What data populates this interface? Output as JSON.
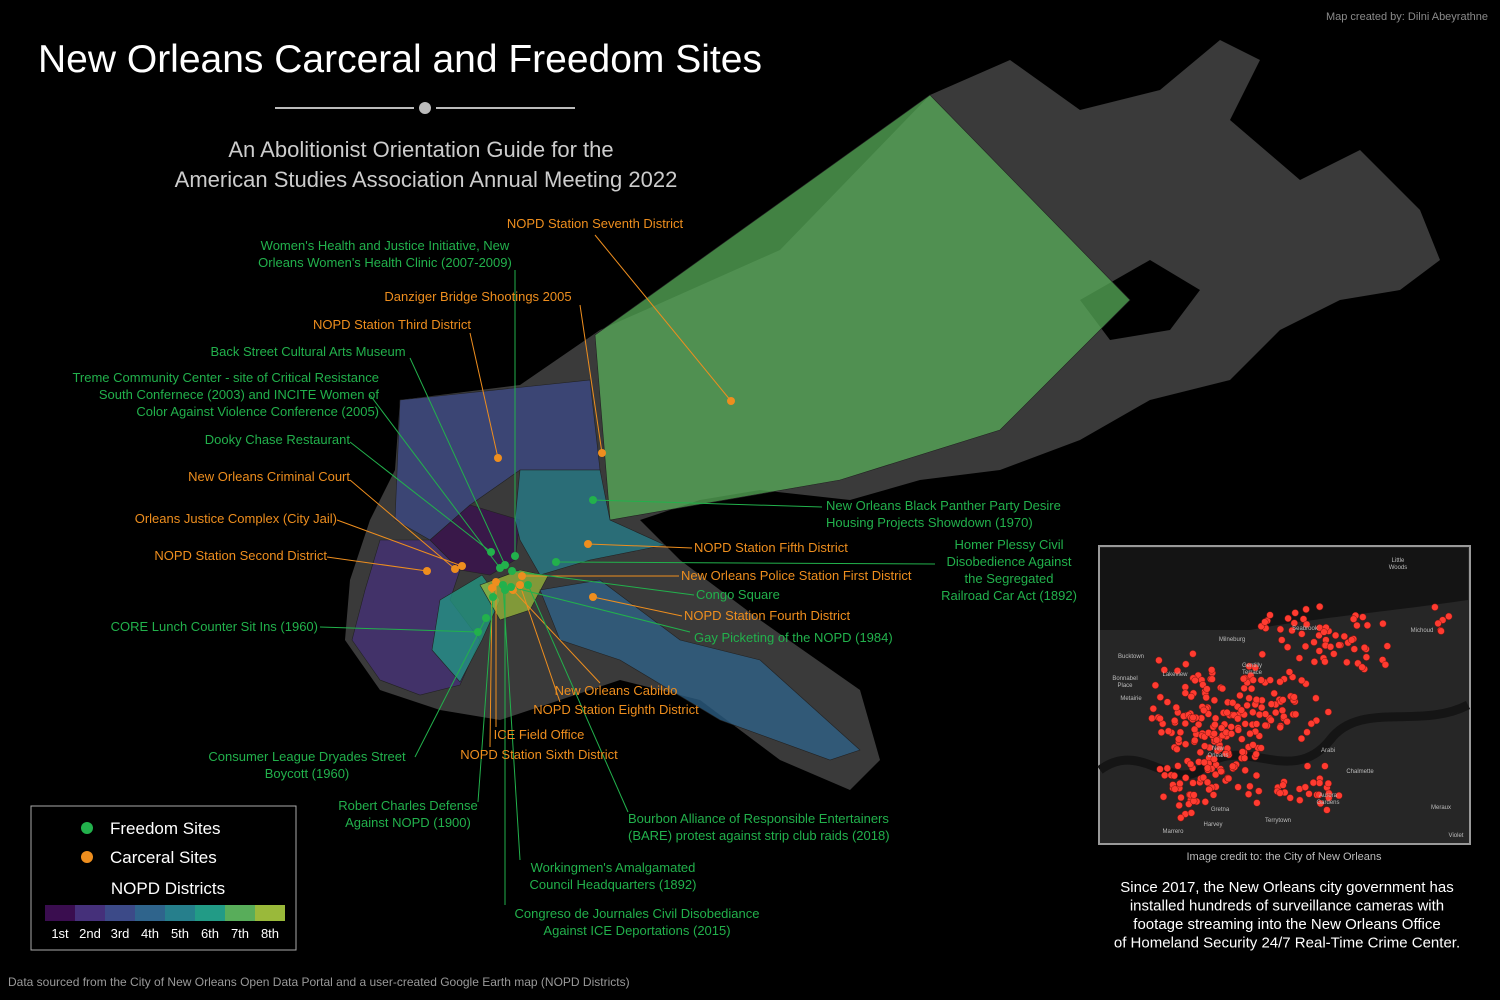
{
  "credit": "Map created by: Dilni Abeyrathne",
  "title": "New Orleans Carceral and Freedom Sites",
  "subtitle": [
    "An Abolitionist Orientation Guide for the",
    "American Studies Association Annual Meeting 2022"
  ],
  "sites": [
    {
      "type": "carceral",
      "label": [
        "NOPD Station Seventh District"
      ]
    },
    {
      "type": "carceral",
      "label": [
        "Danziger Bridge Shootings 2005"
      ]
    },
    {
      "type": "carceral",
      "label": [
        "NOPD Station Third District"
      ]
    },
    {
      "type": "carceral",
      "label": [
        "New Orleans Criminal Court"
      ]
    },
    {
      "type": "carceral",
      "label": [
        "Orleans Justice Complex (City Jail)"
      ]
    },
    {
      "type": "carceral",
      "label": [
        "NOPD Station Second District"
      ]
    },
    {
      "type": "carceral",
      "label": [
        "NOPD Station Fifth District"
      ]
    },
    {
      "type": "carceral",
      "label": [
        "New Orleans Police Station First District"
      ]
    },
    {
      "type": "carceral",
      "label": [
        "NOPD Station Fourth District"
      ]
    },
    {
      "type": "carceral",
      "label": [
        "New Orleans Cabildo"
      ]
    },
    {
      "type": "carceral",
      "label": [
        "NOPD Station Eighth District"
      ]
    },
    {
      "type": "carceral",
      "label": [
        "ICE Field Office"
      ]
    },
    {
      "type": "carceral",
      "label": [
        "NOPD Station Sixth District"
      ]
    },
    {
      "type": "freedom",
      "label": [
        "Women's Health and Justice Initiative, New",
        "Orleans Women's Health Clinic (2007-2009)"
      ]
    },
    {
      "type": "freedom",
      "label": [
        "Back Street Cultural Arts Museum"
      ]
    },
    {
      "type": "freedom",
      "label": [
        "Treme Community Center - site of Critical Resistance",
        "South Confernece (2003) and INCITE Women of",
        "Color Against Violence Conference (2005)"
      ]
    },
    {
      "type": "freedom",
      "label": [
        "Dooky Chase Restaurant"
      ]
    },
    {
      "type": "freedom",
      "label": [
        "New Orleans Black Panther Party Desire",
        "Housing Projects Showdown (1970)"
      ]
    },
    {
      "type": "freedom",
      "label": [
        "Homer Plessy Civil",
        "Disobedience Against",
        "the Segregated",
        "Railroad Car Act (1892)"
      ]
    },
    {
      "type": "freedom",
      "label": [
        "Congo Square"
      ]
    },
    {
      "type": "freedom",
      "label": [
        "Gay Picketing of the NOPD (1984)"
      ]
    },
    {
      "type": "freedom",
      "label": [
        "CORE Lunch Counter Sit Ins (1960)"
      ]
    },
    {
      "type": "freedom",
      "label": [
        "Consumer League Dryades Street",
        "Boycott (1960)"
      ]
    },
    {
      "type": "freedom",
      "label": [
        "Robert Charles Defense",
        "Against NOPD (1900)"
      ]
    },
    {
      "type": "freedom",
      "label": [
        "Bourbon Alliance of Responsible Entertainers",
        "(BARE) protest against strip club raids (2018)"
      ]
    },
    {
      "type": "freedom",
      "label": [
        "Workingmen's Amalgamated",
        "Council Headquarters (1892)"
      ]
    },
    {
      "type": "freedom",
      "label": [
        "Congreso de Journales Civil Disobediance",
        "Against ICE Deportations (2015)"
      ]
    }
  ],
  "legend": {
    "items": [
      {
        "type": "freedom",
        "label": "Freedom Sites",
        "color": "#22b14c"
      },
      {
        "type": "carceral",
        "label": "Carceral Sites",
        "color": "#ee8e1e"
      }
    ],
    "districts_title": "NOPD Districts",
    "districts": [
      {
        "label": "1st",
        "color": "#3a0d4f"
      },
      {
        "label": "2nd",
        "color": "#45307a"
      },
      {
        "label": "3rd",
        "color": "#3c4a88"
      },
      {
        "label": "4th",
        "color": "#2f648c"
      },
      {
        "label": "5th",
        "color": "#267f8c"
      },
      {
        "label": "6th",
        "color": "#229b86"
      },
      {
        "label": "7th",
        "color": "#58ad5a"
      },
      {
        "label": "8th",
        "color": "#9ab93a"
      }
    ]
  },
  "inset": {
    "dot_color": "#ff3b30",
    "places": [
      [
        "Little",
        "Woods"
      ],
      [
        "Bucktown"
      ],
      [
        "Bonnabel",
        "Place"
      ],
      [
        "Metairie"
      ],
      [
        "Lakeview"
      ],
      [
        "Milneburg"
      ],
      [
        "Gentilly",
        "Terrace"
      ],
      [
        "Seabrook"
      ],
      [
        "Michoud"
      ],
      [
        "New",
        "Orleans"
      ],
      [
        "Chalmette"
      ],
      [
        "Arabi"
      ],
      [
        "Aurora",
        "Gardens"
      ],
      [
        "Gretna"
      ],
      [
        "Harvey"
      ],
      [
        "Terrytown"
      ],
      [
        "Marrero"
      ],
      [
        "Meraux"
      ],
      [
        "Violet"
      ]
    ],
    "caption": "Image credit to: the City of New Orleans",
    "description": [
      "Since 2017, the New Orleans city government has",
      "installed hundreds of surveillance cameras with",
      "footage streaming into the New Orleans Office",
      "of Homeland Security 24/7 Real-Time Crime Center."
    ]
  },
  "footer": "Data sourced from the City of New Orleans Open Data Portal and a user-created Google Earth map (NOPD Districts)"
}
